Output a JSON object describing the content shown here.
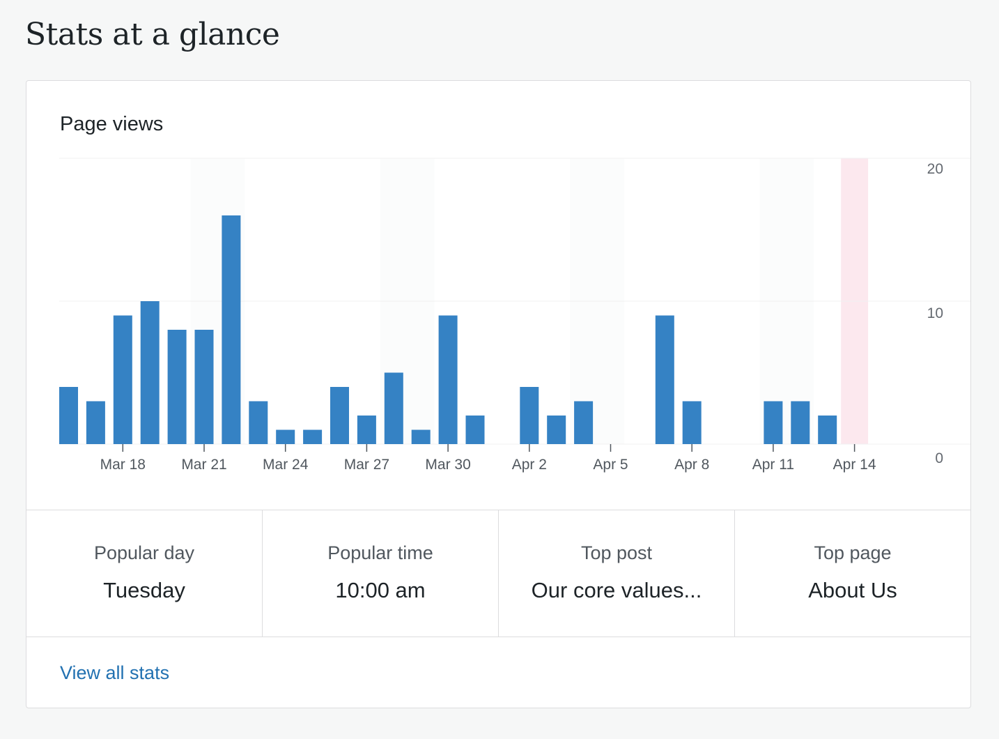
{
  "header": {
    "title": "Stats at a glance"
  },
  "card": {
    "title": "Page views"
  },
  "chart_data": {
    "type": "bar",
    "title": "Page views",
    "categories": [
      "Mar 16",
      "Mar 17",
      "Mar 18",
      "Mar 19",
      "Mar 20",
      "Mar 21",
      "Mar 22",
      "Mar 23",
      "Mar 24",
      "Mar 25",
      "Mar 26",
      "Mar 27",
      "Mar 28",
      "Mar 29",
      "Mar 30",
      "Mar 31",
      "Apr 1",
      "Apr 2",
      "Apr 3",
      "Apr 4",
      "Apr 5",
      "Apr 6",
      "Apr 7",
      "Apr 8",
      "Apr 9",
      "Apr 10",
      "Apr 11",
      "Apr 12",
      "Apr 13",
      "Apr 14"
    ],
    "values": [
      4,
      3,
      9,
      10,
      8,
      8,
      16,
      3,
      1,
      1,
      4,
      2,
      5,
      1,
      9,
      2,
      0,
      4,
      2,
      3,
      0,
      0,
      9,
      3,
      0,
      0,
      3,
      3,
      2,
      0
    ],
    "x_tick_labels": [
      "Mar 18",
      "Mar 21",
      "Mar 24",
      "Mar 27",
      "Mar 30",
      "Apr 2",
      "Apr 5",
      "Apr 8",
      "Apr 11",
      "Apr 14"
    ],
    "y_ticks": [
      0,
      10,
      20
    ],
    "ylim": [
      0,
      20
    ],
    "weekend_start_dates": [
      "Mar 21",
      "Mar 28",
      "Apr 4",
      "Apr 11"
    ],
    "highlight_date": "Apr 14",
    "grid": true,
    "bar_color": "#3582c4",
    "weekend_color": "#fbfcfc",
    "highlight_color": "#fce8ee"
  },
  "stats": [
    {
      "label": "Popular day",
      "value": "Tuesday"
    },
    {
      "label": "Popular time",
      "value": "10:00 am"
    },
    {
      "label": "Top post",
      "value": "Our core values..."
    },
    {
      "label": "Top page",
      "value": "About Us"
    }
  ],
  "footer": {
    "link": "View all stats"
  }
}
